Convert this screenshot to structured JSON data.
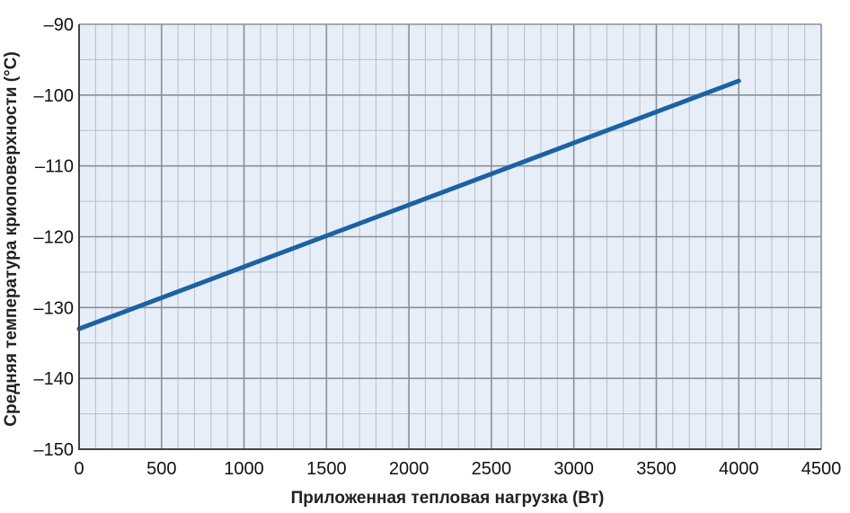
{
  "chart_data": {
    "type": "line",
    "title": "",
    "xlabel": "Приложенная тепловая нагрузка (Вт)",
    "ylabel": "Средняя температура криоповерхности (°C)",
    "xlim": [
      0,
      4500
    ],
    "ylim": [
      -150,
      -90
    ],
    "x_major_ticks": [
      0,
      500,
      1000,
      1500,
      2000,
      2500,
      3000,
      3500,
      4000,
      4500
    ],
    "x_tick_labels": [
      "0",
      "500",
      "1000",
      "1500",
      "2000",
      "2500",
      "3000",
      "3500",
      "4000",
      "4500"
    ],
    "y_major_ticks": [
      -150,
      -140,
      -130,
      -120,
      -110,
      -100,
      -90
    ],
    "y_tick_labels": [
      "–150",
      "–140",
      "–130",
      "–120",
      "–110",
      "–100",
      "–90"
    ],
    "x_minor_step": 100,
    "y_minor_step": 5,
    "grid": true,
    "legend": "none",
    "series": [
      {
        "x": [
          0,
          4000
        ],
        "y": [
          -133,
          -98
        ]
      }
    ],
    "colors": {
      "plot_background": "#e8eef8",
      "major_grid": "#8a8f96",
      "minor_grid": "#b8bec6",
      "line": "#1763a8"
    }
  }
}
